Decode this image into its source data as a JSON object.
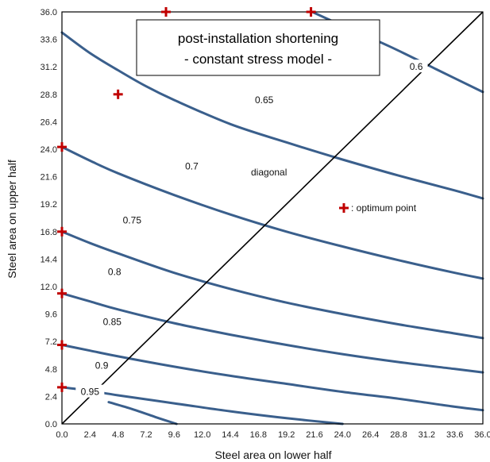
{
  "chart_data": {
    "type": "line",
    "title": "post-installation shortening",
    "subtitle": "- constant stress model -",
    "xlabel": "Steel area on lower half",
    "ylabel": "Steel area on upper half",
    "xlim": [
      0,
      36
    ],
    "ylim": [
      0,
      36
    ],
    "x_ticks": [
      "0.0",
      "2.4",
      "4.8",
      "7.2",
      "9.6",
      "12.0",
      "14.4",
      "16.8",
      "19.2",
      "21.6",
      "24.0",
      "26.4",
      "28.8",
      "31.2",
      "33.6",
      "36.0"
    ],
    "y_ticks": [
      "0.0",
      "2.4",
      "4.8",
      "7.2",
      "9.6",
      "12.0",
      "14.4",
      "16.8",
      "19.2",
      "21.6",
      "24.0",
      "26.4",
      "28.8",
      "31.2",
      "33.6",
      "36.0"
    ],
    "grid": false,
    "diagonal_label": "diagonal",
    "legend": {
      "marker_label": ": optimum point",
      "placement": "right-middle"
    },
    "contours": [
      {
        "label": "0.6",
        "label_at": [
          30.3,
          31.2
        ],
        "points": [
          [
            21.4,
            36.0
          ],
          [
            24,
            34.8
          ],
          [
            28,
            33.0
          ],
          [
            32,
            31.0
          ],
          [
            36,
            29.0
          ]
        ]
      },
      {
        "label": "0.65",
        "label_at": [
          17.3,
          28.3
        ],
        "points": [
          [
            0,
            34.2
          ],
          [
            2.4,
            32.4
          ],
          [
            4.8,
            30.9
          ],
          [
            7.2,
            29.5
          ],
          [
            9.6,
            28.3
          ],
          [
            14.4,
            26.2
          ],
          [
            19.2,
            24.6
          ],
          [
            24,
            23.1
          ],
          [
            28.8,
            21.7
          ],
          [
            33.6,
            20.4
          ],
          [
            36,
            19.7
          ]
        ]
      },
      {
        "label": "0.7",
        "label_at": [
          11.1,
          22.5
        ],
        "points": [
          [
            0,
            24.2
          ],
          [
            2.4,
            23.0
          ],
          [
            4.8,
            21.9
          ],
          [
            9.6,
            20.0
          ],
          [
            14.4,
            18.3
          ],
          [
            19.2,
            16.8
          ],
          [
            24,
            15.5
          ],
          [
            28.8,
            14.3
          ],
          [
            33.6,
            13.2
          ],
          [
            36,
            12.7
          ]
        ]
      },
      {
        "label": "0.75",
        "label_at": [
          6.0,
          17.8
        ],
        "points": [
          [
            0,
            16.8
          ],
          [
            2.4,
            15.8
          ],
          [
            4.8,
            14.9
          ],
          [
            9.6,
            13.2
          ],
          [
            14.4,
            11.8
          ],
          [
            19.2,
            10.6
          ],
          [
            24,
            9.6
          ],
          [
            28.8,
            8.7
          ],
          [
            33.6,
            7.9
          ],
          [
            36,
            7.5
          ]
        ]
      },
      {
        "label": "0.8",
        "label_at": [
          4.5,
          13.3
        ],
        "points": [
          [
            0,
            11.4
          ],
          [
            2.4,
            10.7
          ],
          [
            4.8,
            10.0
          ],
          [
            9.6,
            8.8
          ],
          [
            14.4,
            7.8
          ],
          [
            19.2,
            6.9
          ],
          [
            24,
            6.1
          ],
          [
            28.8,
            5.4
          ],
          [
            33.6,
            4.8
          ],
          [
            36,
            4.5
          ]
        ]
      },
      {
        "label": "0.85",
        "label_at": [
          4.3,
          8.9
        ],
        "points": [
          [
            0,
            6.9
          ],
          [
            2.4,
            6.4
          ],
          [
            4.8,
            5.9
          ],
          [
            9.6,
            5.0
          ],
          [
            14.4,
            4.2
          ],
          [
            19.2,
            3.5
          ],
          [
            24,
            2.8
          ],
          [
            28.8,
            2.2
          ],
          [
            33.6,
            1.5
          ],
          [
            36,
            1.2
          ]
        ]
      },
      {
        "label": "0.9",
        "label_at": [
          3.4,
          5.1
        ],
        "points": [
          [
            0,
            3.2
          ],
          [
            2.4,
            2.9
          ],
          [
            4.8,
            2.5
          ],
          [
            9.6,
            1.8
          ],
          [
            14.4,
            1.1
          ],
          [
            19.2,
            0.5
          ],
          [
            24,
            0.0
          ]
        ]
      },
      {
        "label": "0.95",
        "label_at": [
          2.4,
          2.8
        ],
        "points": [
          [
            4.0,
            1.9
          ],
          [
            6.0,
            1.3
          ],
          [
            8.0,
            0.6
          ],
          [
            9.8,
            0.0
          ]
        ]
      }
    ],
    "optimum_points": [
      [
        8.9,
        36.0
      ],
      [
        21.3,
        36.0
      ],
      [
        4.8,
        28.8
      ],
      [
        0,
        24.2
      ],
      [
        0,
        16.8
      ],
      [
        0,
        11.4
      ],
      [
        0,
        6.9
      ],
      [
        0,
        3.2
      ]
    ]
  },
  "colors": {
    "contour": "#3a5f8c",
    "marker": "#c00000",
    "axis": "#000000"
  }
}
